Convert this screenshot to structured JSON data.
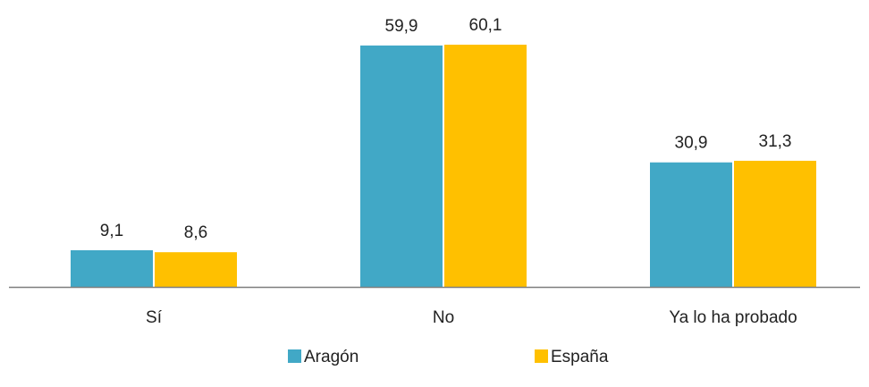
{
  "chart_data": {
    "type": "bar",
    "categories": [
      "Sí",
      "No",
      "Ya lo ha probado"
    ],
    "series": [
      {
        "name": "Aragón",
        "values": [
          9.1,
          59.9,
          30.9
        ],
        "labels": [
          "9,1",
          "59,9",
          "30,9"
        ],
        "color": "#41A8C6"
      },
      {
        "name": "España",
        "values": [
          8.6,
          60.1,
          31.3
        ],
        "labels": [
          "8,6",
          "60,1",
          "31,3"
        ],
        "color": "#FFC000"
      }
    ],
    "ylim": [
      0,
      60.1
    ],
    "legend": "bottom",
    "grid": false,
    "axis_color": "#7F7F7F"
  }
}
